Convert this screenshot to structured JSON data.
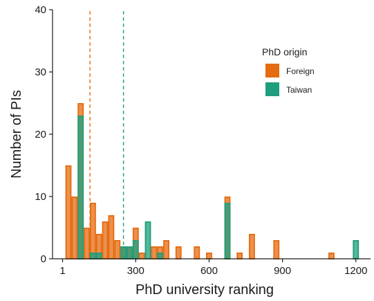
{
  "chart_data": {
    "type": "bar",
    "title": "",
    "xlabel": "PhD university ranking",
    "ylabel": "Number of PIs",
    "xlim": [
      -40,
      1260
    ],
    "ylim": [
      0,
      40
    ],
    "x_ticks": [
      1,
      300,
      600,
      900,
      1200
    ],
    "x_tick_labels": [
      "1",
      "300",
      "600",
      "900",
      "1200"
    ],
    "y_ticks": [
      0,
      10,
      20,
      30,
      40
    ],
    "y_tick_labels": [
      "0",
      "10",
      "20",
      "30",
      "40"
    ],
    "grid": false,
    "legend": {
      "title": "PhD origin",
      "position": "top-right",
      "entries": [
        {
          "label": "Foreign",
          "color": "#E56B10"
        },
        {
          "label": "Taiwan",
          "color": "#1E9E7C"
        }
      ]
    },
    "bar_width": 25,
    "series": [
      {
        "name": "Foreign",
        "color": "#E56B10",
        "mean": 113,
        "bars": [
          {
            "x": 25,
            "y": 15
          },
          {
            "x": 50,
            "y": 10
          },
          {
            "x": 75,
            "y": 25
          },
          {
            "x": 100,
            "y": 5
          },
          {
            "x": 125,
            "y": 9
          },
          {
            "x": 150,
            "y": 4
          },
          {
            "x": 175,
            "y": 6
          },
          {
            "x": 200,
            "y": 7
          },
          {
            "x": 225,
            "y": 3
          },
          {
            "x": 250,
            "y": 2
          },
          {
            "x": 275,
            "y": 2
          },
          {
            "x": 300,
            "y": 5
          },
          {
            "x": 325,
            "y": 1
          },
          {
            "x": 375,
            "y": 2
          },
          {
            "x": 400,
            "y": 2
          },
          {
            "x": 425,
            "y": 3
          },
          {
            "x": 475,
            "y": 2
          },
          {
            "x": 550,
            "y": 2
          },
          {
            "x": 600,
            "y": 1
          },
          {
            "x": 675,
            "y": 10
          },
          {
            "x": 725,
            "y": 1
          },
          {
            "x": 775,
            "y": 4
          },
          {
            "x": 875,
            "y": 3
          },
          {
            "x": 1100,
            "y": 1
          }
        ]
      },
      {
        "name": "Taiwan",
        "color": "#1E9E7C",
        "mean": 250,
        "bars": [
          {
            "x": 75,
            "y": 23
          },
          {
            "x": 125,
            "y": 1
          },
          {
            "x": 150,
            "y": 1
          },
          {
            "x": 250,
            "y": 2
          },
          {
            "x": 275,
            "y": 2
          },
          {
            "x": 300,
            "y": 3
          },
          {
            "x": 350,
            "y": 6
          },
          {
            "x": 400,
            "y": 1
          },
          {
            "x": 675,
            "y": 9
          },
          {
            "x": 1200,
            "y": 3
          }
        ]
      }
    ]
  }
}
